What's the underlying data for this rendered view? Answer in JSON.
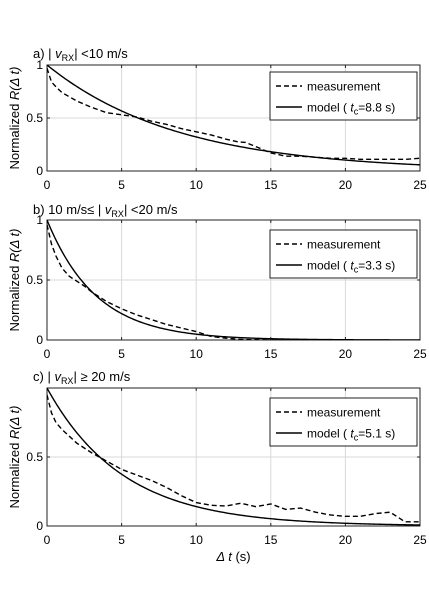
{
  "figure": {
    "xlabel_sym": "Δ t",
    "xlabel_unit": " (s)",
    "ylabel_prefix": "Normalized ",
    "ylabel_sym": "R(Δ t)"
  },
  "chart_data": [
    {
      "type": "line",
      "panel_label": "a)",
      "title_parts": [
        "a) | ",
        "v",
        "RX",
        "| <10 m/s"
      ],
      "xlabel": "",
      "ylabel": "Normalized R(Δ t)",
      "xlim": [
        0,
        25
      ],
      "ylim": [
        0,
        1
      ],
      "xticks": [
        0,
        5,
        10,
        15,
        20,
        25
      ],
      "yticks": [
        0,
        0.5,
        1
      ],
      "ytick_labels": [
        "0",
        "0.5",
        "1"
      ],
      "grid": true,
      "legend_position": "top-right",
      "tc": 8.8,
      "series": [
        {
          "name": "measurement",
          "style": "dashed",
          "x": [
            0,
            0.3,
            0.7,
            1,
            1.5,
            2,
            3,
            4,
            5,
            6,
            7,
            8,
            9,
            10,
            11,
            12,
            12.8,
            13.3,
            14,
            15,
            16,
            17,
            18,
            19,
            20,
            21,
            22,
            23,
            24,
            25
          ],
          "y": [
            0.97,
            0.84,
            0.78,
            0.74,
            0.7,
            0.66,
            0.6,
            0.55,
            0.53,
            0.51,
            0.47,
            0.44,
            0.4,
            0.37,
            0.34,
            0.3,
            0.275,
            0.27,
            0.23,
            0.17,
            0.14,
            0.14,
            0.13,
            0.12,
            0.12,
            0.11,
            0.11,
            0.11,
            0.11,
            0.12
          ]
        },
        {
          "name": "model ( tc=8.8 s)",
          "name_parts": [
            "model ( ",
            "t",
            "c",
            "=8.8 s)"
          ],
          "style": "solid",
          "model": "exp",
          "tc": 8.8
        }
      ]
    },
    {
      "type": "line",
      "panel_label": "b)",
      "title_parts": [
        "b) 10 m/s≤ | ",
        "v",
        "RX",
        "| <20 m/s"
      ],
      "xlabel": "",
      "ylabel": "Normalized R(Δ t)",
      "xlim": [
        0,
        25
      ],
      "ylim": [
        0,
        1
      ],
      "xticks": [
        0,
        5,
        10,
        15,
        20,
        25
      ],
      "yticks": [
        0,
        0.5,
        1
      ],
      "ytick_labels": [
        "0",
        "0.5",
        "1"
      ],
      "grid": true,
      "legend_position": "top-right",
      "tc": 3.3,
      "series": [
        {
          "name": "measurement",
          "style": "dashed",
          "x": [
            0,
            0.3,
            0.6,
            1,
            1.5,
            2,
            2.5,
            3,
            3.5,
            4,
            5,
            6,
            7,
            8,
            9,
            10,
            10.5,
            11,
            12,
            13,
            14,
            15
          ],
          "y": [
            0.96,
            0.8,
            0.7,
            0.6,
            0.53,
            0.49,
            0.45,
            0.4,
            0.36,
            0.32,
            0.26,
            0.21,
            0.17,
            0.13,
            0.1,
            0.07,
            0.05,
            0.03,
            0.015,
            0.005,
            0.002,
            0.0
          ]
        },
        {
          "name": "model ( tc=3.3 s)",
          "name_parts": [
            "model ( ",
            "t",
            "c",
            "=3.3 s)"
          ],
          "style": "solid",
          "model": "exp",
          "tc": 3.3
        }
      ]
    },
    {
      "type": "line",
      "panel_label": "c)",
      "title_parts": [
        "c) | ",
        "v",
        "RX",
        "| ≥ 20 m/s"
      ],
      "xlabel": "Δ t (s)",
      "ylabel": "Normalized R(Δ t)",
      "xlim": [
        0,
        25
      ],
      "ylim": [
        0,
        1
      ],
      "xticks": [
        0,
        5,
        10,
        15,
        20,
        25
      ],
      "yticks": [
        0,
        0.5
      ],
      "ytick_labels": [
        "0",
        "0.5"
      ],
      "grid": true,
      "legend_position": "top-right",
      "tc": 5.1,
      "series": [
        {
          "name": "measurement",
          "style": "dashed",
          "x": [
            0,
            0.3,
            0.6,
            1,
            1.5,
            2,
            3,
            4,
            5,
            6,
            7,
            8,
            9,
            10,
            11,
            12,
            13,
            14,
            15,
            16,
            17,
            18,
            19,
            20,
            21,
            22,
            23,
            24,
            25
          ],
          "y": [
            0.95,
            0.82,
            0.75,
            0.7,
            0.65,
            0.6,
            0.53,
            0.47,
            0.41,
            0.37,
            0.33,
            0.28,
            0.22,
            0.17,
            0.15,
            0.145,
            0.165,
            0.14,
            0.16,
            0.12,
            0.13,
            0.1,
            0.08,
            0.07,
            0.07,
            0.09,
            0.1,
            0.03,
            0.03
          ]
        },
        {
          "name": "model ( tc=5.1 s)",
          "name_parts": [
            "model ( ",
            "t",
            "c",
            "=5.1 s)"
          ],
          "style": "solid",
          "model": "exp",
          "tc": 5.1
        }
      ]
    }
  ]
}
